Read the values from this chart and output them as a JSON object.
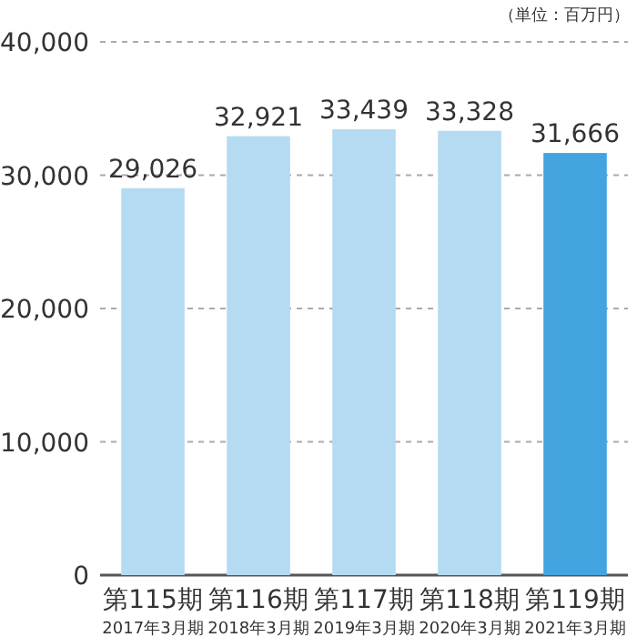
{
  "chart_data": {
    "type": "bar",
    "categories": [
      "第115期\n2017年3月期",
      "第116期\n2018年3月期",
      "第117期\n2019年3月期",
      "第118期\n2020年3月期",
      "第119期\n2021年3月期"
    ],
    "values": [
      29026,
      32921,
      33439,
      33328,
      31666
    ],
    "colors": [
      "#b5dbf3",
      "#b5dbf3",
      "#b5dbf3",
      "#b5dbf3",
      "#44a4e0"
    ],
    "value_labels": [
      "29,026",
      "32,921",
      "33,439",
      "33,328",
      "31,666"
    ],
    "ylim": [
      0,
      40000
    ],
    "yticks": [
      0,
      {
        "value": 10000,
        "label": "10,000"
      },
      {
        "value": 20000,
        "label": "20,000"
      },
      {
        "value": 30000,
        "label": "30,000"
      },
      {
        "value": 40000,
        "label": "40,000"
      }
    ],
    "grid": "y",
    "annotations": [
      "（単位：百万円）"
    ]
  }
}
